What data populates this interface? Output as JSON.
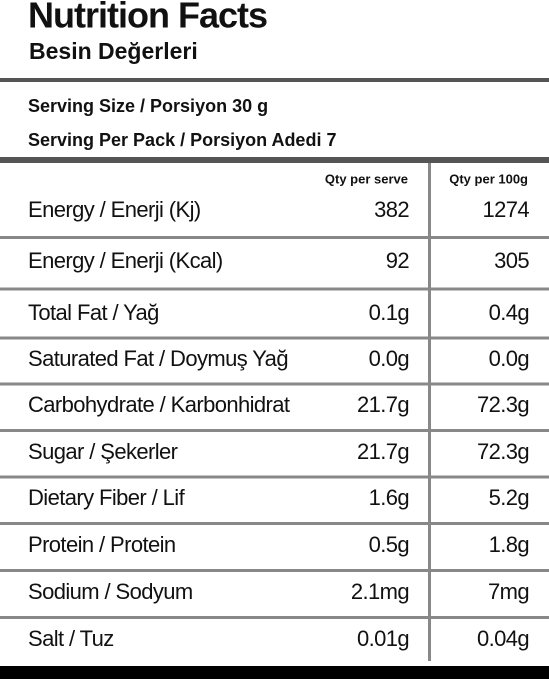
{
  "header": {
    "title": "Nutrition Facts",
    "subtitle": "Besin Değerleri"
  },
  "serving": [
    "Serving Size / Porsiyon  30 g",
    "Serving Per Pack / Porsiyon Adedi  7"
  ],
  "table": {
    "columns": [
      "Qty per serve",
      "Qty per 100g"
    ],
    "rows": [
      [
        "Energy / Enerji (Kj)",
        "382",
        "1274"
      ],
      [
        "Energy / Enerji (Kcal)",
        "92",
        "305"
      ],
      [
        "Total Fat / Yağ",
        "0.1g",
        "0.4g"
      ],
      [
        "Saturated Fat / Doymuş Yağ",
        "0.0g",
        "0.0g"
      ],
      [
        "Carbohydrate / Karbonhidrat",
        "21.7g",
        "72.3g"
      ],
      [
        "Sugar / Şekerler",
        "21.7g",
        "72.3g"
      ],
      [
        "Dietary Fiber / Lif",
        "1.6g",
        "5.2g"
      ],
      [
        "Protein / Protein",
        "0.5g",
        "1.8g"
      ],
      [
        "Sodium / Sodyum",
        "2.1mg",
        "7mg"
      ],
      [
        "Salt / Tuz",
        "0.01g",
        "0.04g"
      ]
    ]
  }
}
